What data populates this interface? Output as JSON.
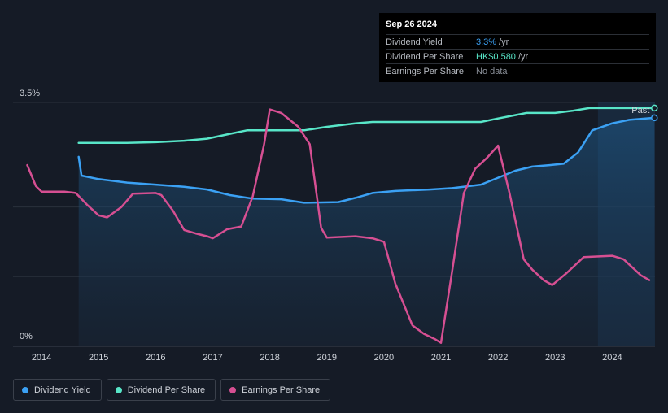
{
  "tooltip": {
    "date": "Sep 26 2024",
    "rows": [
      {
        "label": "Dividend Yield",
        "value": "3.3%",
        "unit": "/yr",
        "color": "#3ba1f4"
      },
      {
        "label": "Dividend Per Share",
        "value": "HK$0.580",
        "unit": "/yr",
        "color": "#58e6c8"
      },
      {
        "label": "Earnings Per Share",
        "value": "No data",
        "unit": "",
        "color": "#8a8f98"
      }
    ]
  },
  "past_label": "Past",
  "legend": [
    {
      "label": "Dividend Yield",
      "color": "#3ba1f4"
    },
    {
      "label": "Dividend Per Share",
      "color": "#58e6c8"
    },
    {
      "label": "Earnings Per Share",
      "color": "#d64f92"
    }
  ],
  "chart_data": {
    "type": "line",
    "y_ticks": [
      "3.5%",
      "0%"
    ],
    "ylim": [
      0,
      3.5
    ],
    "xlim": [
      2013.5,
      2024.75
    ],
    "x_ticks": [
      2014,
      2015,
      2016,
      2017,
      2018,
      2019,
      2020,
      2021,
      2022,
      2023,
      2024
    ],
    "past_region_start": 2023.75,
    "series": [
      {
        "name": "Dividend Yield",
        "color": "#3ba1f4",
        "filled": true,
        "points": [
          [
            2014.65,
            2.72
          ],
          [
            2014.7,
            2.45
          ],
          [
            2015.0,
            2.4
          ],
          [
            2015.5,
            2.35
          ],
          [
            2016.0,
            2.32
          ],
          [
            2016.5,
            2.29
          ],
          [
            2016.9,
            2.25
          ],
          [
            2017.3,
            2.17
          ],
          [
            2017.7,
            2.12
          ],
          [
            2018.2,
            2.11
          ],
          [
            2018.6,
            2.06
          ],
          [
            2019.2,
            2.07
          ],
          [
            2019.5,
            2.13
          ],
          [
            2019.8,
            2.2
          ],
          [
            2020.2,
            2.23
          ],
          [
            2020.8,
            2.25
          ],
          [
            2021.2,
            2.27
          ],
          [
            2021.7,
            2.32
          ],
          [
            2022.0,
            2.42
          ],
          [
            2022.3,
            2.52
          ],
          [
            2022.6,
            2.58
          ],
          [
            2022.9,
            2.6
          ],
          [
            2023.15,
            2.62
          ],
          [
            2023.4,
            2.78
          ],
          [
            2023.65,
            3.1
          ],
          [
            2024.0,
            3.2
          ],
          [
            2024.3,
            3.25
          ],
          [
            2024.74,
            3.28
          ]
        ]
      },
      {
        "name": "Dividend Per Share",
        "color": "#58e6c8",
        "filled": false,
        "points": [
          [
            2014.65,
            2.92
          ],
          [
            2015.0,
            2.92
          ],
          [
            2015.5,
            2.92
          ],
          [
            2016.0,
            2.93
          ],
          [
            2016.5,
            2.95
          ],
          [
            2016.9,
            2.98
          ],
          [
            2017.3,
            3.05
          ],
          [
            2017.6,
            3.1
          ],
          [
            2018.0,
            3.1
          ],
          [
            2018.6,
            3.1
          ],
          [
            2019.0,
            3.15
          ],
          [
            2019.5,
            3.2
          ],
          [
            2019.8,
            3.22
          ],
          [
            2020.5,
            3.22
          ],
          [
            2021.2,
            3.22
          ],
          [
            2021.7,
            3.22
          ],
          [
            2022.0,
            3.27
          ],
          [
            2022.5,
            3.35
          ],
          [
            2023.0,
            3.35
          ],
          [
            2023.3,
            3.38
          ],
          [
            2023.6,
            3.42
          ],
          [
            2024.74,
            3.42
          ]
        ]
      },
      {
        "name": "Earnings Per Share",
        "color": "#d64f92",
        "filled": false,
        "points": [
          [
            2013.75,
            2.6
          ],
          [
            2013.9,
            2.3
          ],
          [
            2014.0,
            2.22
          ],
          [
            2014.4,
            2.22
          ],
          [
            2014.6,
            2.2
          ],
          [
            2014.8,
            2.03
          ],
          [
            2015.0,
            1.88
          ],
          [
            2015.15,
            1.85
          ],
          [
            2015.4,
            2.0
          ],
          [
            2015.6,
            2.19
          ],
          [
            2016.0,
            2.2
          ],
          [
            2016.1,
            2.17
          ],
          [
            2016.3,
            1.95
          ],
          [
            2016.5,
            1.67
          ],
          [
            2016.7,
            1.62
          ],
          [
            2016.9,
            1.58
          ],
          [
            2017.0,
            1.55
          ],
          [
            2017.25,
            1.68
          ],
          [
            2017.5,
            1.72
          ],
          [
            2017.7,
            2.15
          ],
          [
            2017.9,
            2.9
          ],
          [
            2018.0,
            3.4
          ],
          [
            2018.2,
            3.35
          ],
          [
            2018.5,
            3.15
          ],
          [
            2018.7,
            2.9
          ],
          [
            2018.9,
            1.7
          ],
          [
            2019.0,
            1.56
          ],
          [
            2019.5,
            1.58
          ],
          [
            2019.8,
            1.55
          ],
          [
            2020.0,
            1.5
          ],
          [
            2020.2,
            0.9
          ],
          [
            2020.5,
            0.3
          ],
          [
            2020.7,
            0.18
          ],
          [
            2020.9,
            0.1
          ],
          [
            2021.0,
            0.05
          ],
          [
            2021.2,
            1.1
          ],
          [
            2021.4,
            2.2
          ],
          [
            2021.6,
            2.55
          ],
          [
            2021.8,
            2.7
          ],
          [
            2022.0,
            2.88
          ],
          [
            2022.2,
            2.2
          ],
          [
            2022.45,
            1.25
          ],
          [
            2022.6,
            1.1
          ],
          [
            2022.8,
            0.95
          ],
          [
            2022.95,
            0.88
          ],
          [
            2023.2,
            1.05
          ],
          [
            2023.5,
            1.28
          ],
          [
            2024.0,
            1.3
          ],
          [
            2024.2,
            1.25
          ],
          [
            2024.5,
            1.02
          ],
          [
            2024.65,
            0.95
          ]
        ]
      }
    ]
  }
}
